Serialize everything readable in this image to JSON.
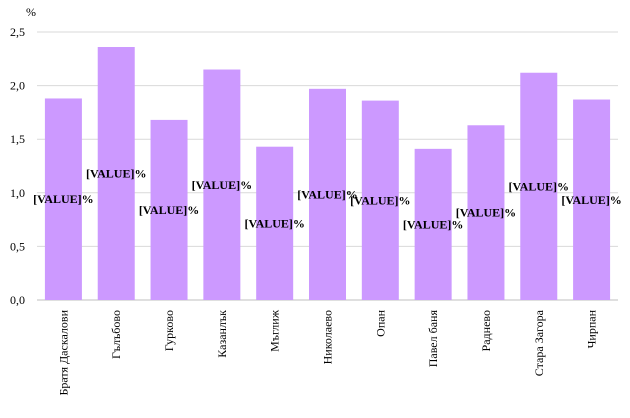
{
  "chart_data": {
    "type": "bar",
    "y_label": "%",
    "categories": [
      "Братя Даскалови",
      "Гълъбово",
      "Гурково",
      "Казанлък",
      "Мъглиж",
      "Николаево",
      "Опан",
      "Павел баня",
      "Раднево",
      "Стара Загора",
      "Чирпан"
    ],
    "values": [
      1.88,
      2.36,
      1.68,
      2.15,
      1.43,
      1.97,
      1.86,
      1.41,
      1.63,
      2.12,
      1.87
    ],
    "value_labels": [
      "[VALUE]%",
      "[VALUE]%",
      "[VALUE]%",
      "[VALUE]%",
      "[VALUE]%",
      "[VALUE]%",
      "[VALUE]%",
      "[VALUE]%",
      "[VALUE]%",
      "[VALUE]%",
      "[VALUE]%"
    ],
    "color": "#cc99ff",
    "ylim": [
      0,
      2.5
    ],
    "yticks": [
      {
        "value": 0,
        "label": "0,0"
      },
      {
        "value": 0.5,
        "label": "0,5"
      },
      {
        "value": 1,
        "label": "1,0"
      },
      {
        "value": 1.5,
        "label": "1,5"
      },
      {
        "value": 2,
        "label": "2,0"
      },
      {
        "value": 2.5,
        "label": "2,5"
      }
    ],
    "grid": true
  }
}
